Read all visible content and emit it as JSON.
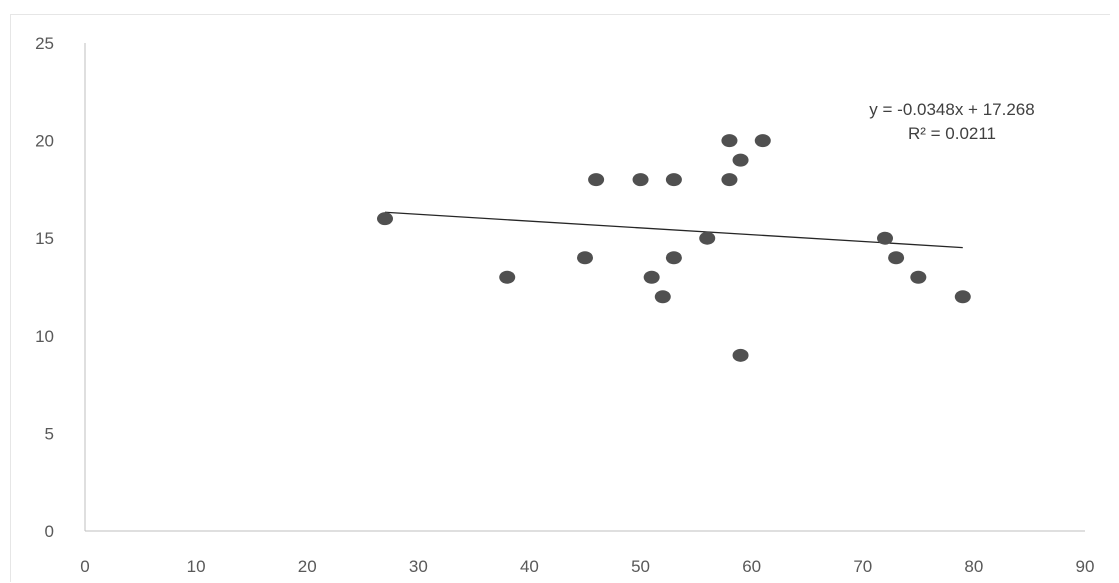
{
  "chart_data": {
    "type": "scatter",
    "title": "",
    "xlabel": "",
    "ylabel": "",
    "xlim": [
      0,
      90
    ],
    "ylim": [
      0,
      25
    ],
    "x_ticks": [
      0,
      10,
      20,
      30,
      40,
      50,
      60,
      70,
      80,
      90
    ],
    "y_ticks": [
      0,
      5,
      10,
      15,
      20,
      25
    ],
    "grid": false,
    "legend": "none",
    "point_color": "#505050",
    "series": [
      {
        "points": [
          {
            "x": 27,
            "y": 16
          },
          {
            "x": 38,
            "y": 13
          },
          {
            "x": 45,
            "y": 14
          },
          {
            "x": 46,
            "y": 18
          },
          {
            "x": 50,
            "y": 18
          },
          {
            "x": 51,
            "y": 13
          },
          {
            "x": 52,
            "y": 12
          },
          {
            "x": 53,
            "y": 18
          },
          {
            "x": 53,
            "y": 14
          },
          {
            "x": 56,
            "y": 15
          },
          {
            "x": 58,
            "y": 20
          },
          {
            "x": 58,
            "y": 18
          },
          {
            "x": 59,
            "y": 19
          },
          {
            "x": 59,
            "y": 9
          },
          {
            "x": 61,
            "y": 20
          },
          {
            "x": 72,
            "y": 15
          },
          {
            "x": 73,
            "y": 14
          },
          {
            "x": 75,
            "y": 13
          },
          {
            "x": 79,
            "y": 12
          }
        ]
      }
    ],
    "trendline": {
      "type": "linear",
      "slope": -0.0348,
      "intercept": 17.268,
      "x_range": [
        27,
        79
      ],
      "equation_label": "y = -0.0348x + 17.268",
      "r2_label": "R² = 0.0211"
    }
  }
}
